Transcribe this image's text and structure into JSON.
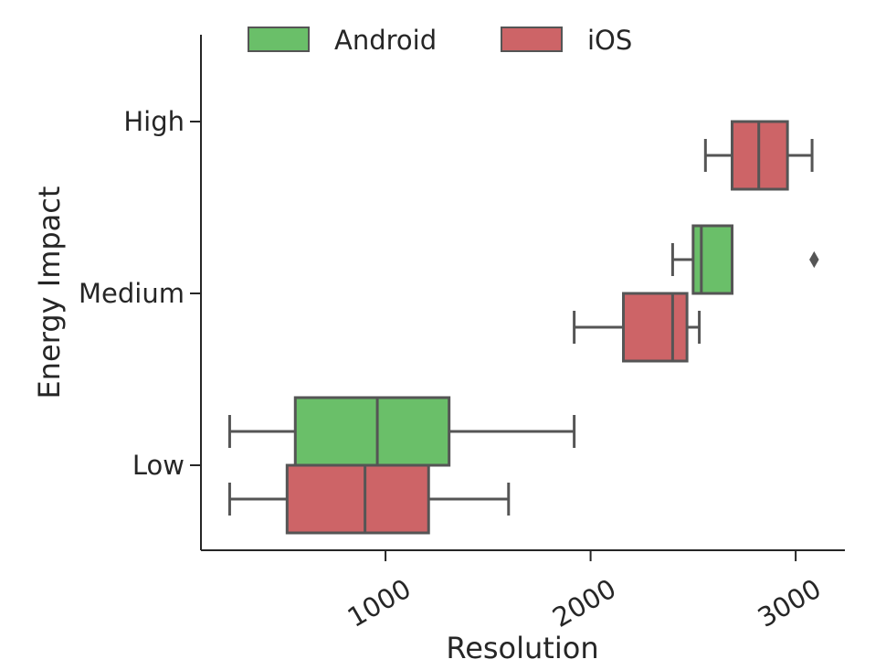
{
  "chart_data": {
    "type": "boxplot",
    "orientation": "horizontal",
    "xlabel": "Resolution",
    "ylabel": "Energy Impact",
    "xlim": [
      100,
      3240
    ],
    "x_ticks": [
      1000,
      2000,
      3000
    ],
    "x_tick_labels": [
      "1000",
      "2000",
      "3000"
    ],
    "categories": [
      "High",
      "Medium",
      "Low"
    ],
    "legend_position": "top",
    "grid": false,
    "series": [
      {
        "name": "Android",
        "color": "#6abf69",
        "boxes": [
          {
            "category": "Medium",
            "whislo": 2400,
            "q1": 2500,
            "med": 2540,
            "q3": 2690,
            "whishi": 2690,
            "fliers": [
              3090
            ]
          },
          {
            "category": "Low",
            "whislo": 240,
            "q1": 560,
            "med": 960,
            "q3": 1310,
            "whishi": 1920,
            "fliers": []
          }
        ]
      },
      {
        "name": "iOS",
        "color": "#cd6467",
        "boxes": [
          {
            "category": "High",
            "whislo": 2560,
            "q1": 2690,
            "med": 2820,
            "q3": 2960,
            "whishi": 3080,
            "fliers": []
          },
          {
            "category": "Medium",
            "whislo": 1920,
            "q1": 2160,
            "med": 2400,
            "q3": 2470,
            "whishi": 2530,
            "fliers": []
          },
          {
            "category": "Low",
            "whislo": 240,
            "q1": 520,
            "med": 900,
            "q3": 1210,
            "whishi": 1600,
            "fliers": []
          }
        ]
      }
    ]
  }
}
